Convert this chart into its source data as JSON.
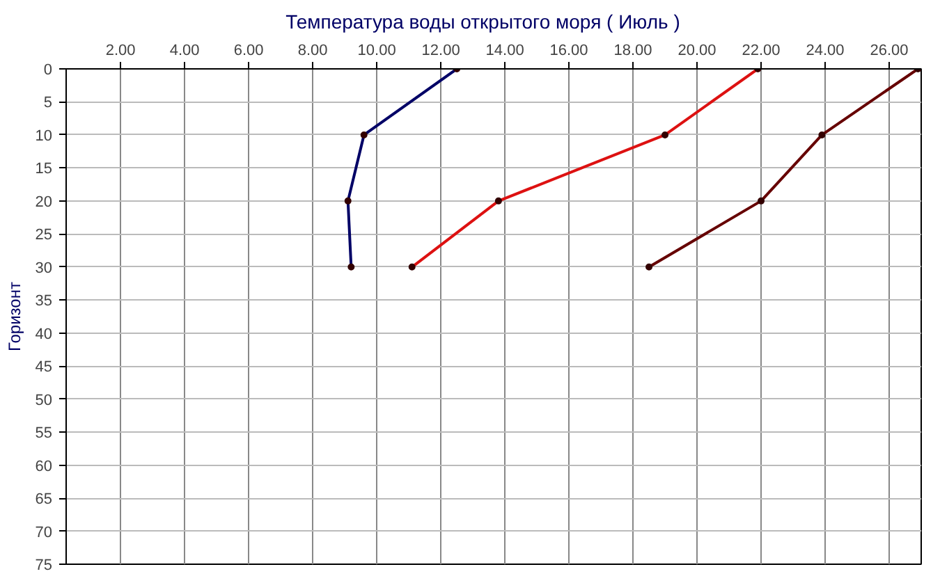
{
  "chart_data": {
    "type": "line",
    "title": "Температура воды открытого моря     ( Июль )",
    "ylabel": "Горизонт",
    "series": [
      {
        "color": "#000066",
        "x": [
          12.5,
          9.6,
          9.1,
          9.2
        ],
        "values": [
          0,
          10,
          20,
          30
        ]
      },
      {
        "color": "#dd1111",
        "x": [
          21.9,
          19.0,
          13.8,
          11.1
        ],
        "values": [
          0,
          10,
          20,
          30
        ]
      },
      {
        "color": "#660000",
        "x": [
          26.9,
          23.9,
          22.0,
          18.5
        ],
        "values": [
          0,
          10,
          20,
          30
        ]
      }
    ],
    "xlim": [
      0.3,
      27
    ],
    "xticks": [
      {
        "value": 2,
        "label": "2.00"
      },
      {
        "value": 4,
        "label": "4.00"
      },
      {
        "value": 6,
        "label": "6.00"
      },
      {
        "value": 8,
        "label": "8.00"
      },
      {
        "value": 10,
        "label": "10.00"
      },
      {
        "value": 12,
        "label": "12.00"
      },
      {
        "value": 14,
        "label": "14.00"
      },
      {
        "value": 16,
        "label": "16.00"
      },
      {
        "value": 18,
        "label": "18.00"
      },
      {
        "value": 20,
        "label": "20.00"
      },
      {
        "value": 22,
        "label": "22.00"
      },
      {
        "value": 24,
        "label": "24.00"
      },
      {
        "value": 26,
        "label": "26.00"
      }
    ],
    "ylim": [
      75,
      0
    ],
    "yticks": [
      0,
      5,
      10,
      15,
      20,
      25,
      30,
      35,
      40,
      45,
      50,
      55,
      60,
      65,
      70,
      75
    ],
    "grid": true,
    "marker": "circle",
    "line_style": "solid"
  }
}
